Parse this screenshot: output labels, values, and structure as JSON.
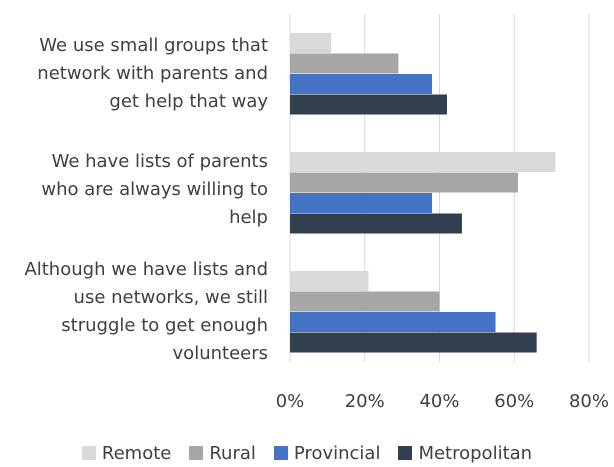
{
  "chart_data": {
    "type": "bar",
    "orientation": "horizontal",
    "categories": [
      "We use small groups that network with parents and get help that way",
      "We have lists of parents who are always willing to help",
      "Although we have lists and use networks, we still struggle to get enough volunteers"
    ],
    "category_lines": [
      [
        "We use small groups that",
        "network with parents and",
        "get help that way"
      ],
      [
        "We have lists of parents",
        "who are always willing to",
        "help"
      ],
      [
        "Although we have lists and",
        "use networks, we still",
        "struggle to get enough",
        "volunteers"
      ]
    ],
    "series": [
      {
        "name": "Remote",
        "values": [
          11,
          71,
          21
        ],
        "color": "#d9d9d9"
      },
      {
        "name": "Rural",
        "values": [
          29,
          61,
          40
        ],
        "color": "#a6a6a6"
      },
      {
        "name": "Provincial",
        "values": [
          38,
          38,
          55
        ],
        "color": "#4472c4"
      },
      {
        "name": "Metropolitan",
        "values": [
          42,
          46,
          66
        ],
        "color": "#323f4f"
      }
    ],
    "xlim": [
      0,
      80
    ],
    "xticks": [
      "0%",
      "20%",
      "40%",
      "60%",
      "80%"
    ],
    "xlabel": "",
    "ylabel": "",
    "grid": true,
    "legend": "bottom"
  }
}
